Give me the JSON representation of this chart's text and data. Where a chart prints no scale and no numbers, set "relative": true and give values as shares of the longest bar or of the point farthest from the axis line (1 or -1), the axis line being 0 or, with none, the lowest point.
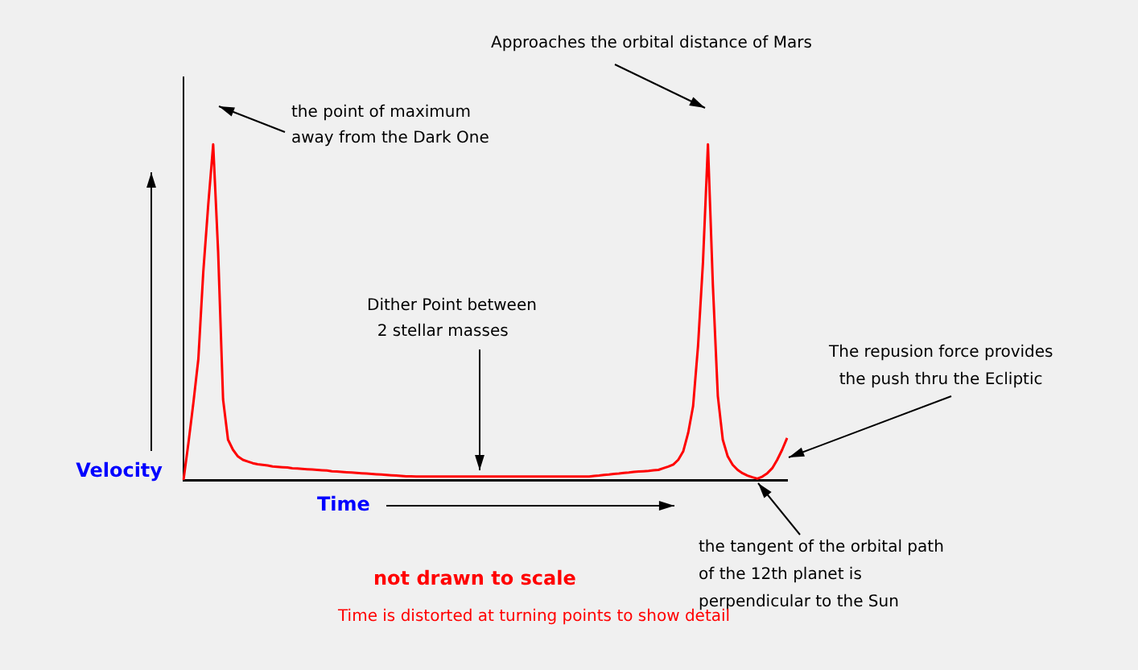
{
  "chart_data": {
    "type": "line",
    "relative": true,
    "xlabel": "Time",
    "ylabel": "Velocity",
    "grid": false,
    "legend": false,
    "marker": "none",
    "line_style": "solid",
    "categories": [
      null,
      null,
      null,
      null,
      null,
      null,
      null,
      null,
      null,
      null,
      null,
      null,
      null,
      null,
      null,
      null,
      null,
      null,
      null,
      null,
      null,
      null,
      null,
      null,
      null,
      null,
      null,
      null,
      null,
      null,
      null,
      null,
      null,
      null,
      null,
      null,
      null,
      null,
      null,
      null,
      null,
      null,
      null,
      null,
      null,
      null,
      null,
      null,
      null,
      null,
      null,
      null,
      null,
      null,
      null,
      null,
      null,
      null,
      null,
      null,
      null,
      null,
      null,
      null,
      null,
      null,
      null,
      null,
      null,
      null,
      null,
      null,
      null,
      null,
      null,
      null,
      null,
      null,
      null,
      null,
      null,
      null,
      null,
      null,
      null,
      null,
      null,
      null,
      null,
      null,
      null,
      null,
      null,
      null,
      null,
      null,
      null,
      null,
      null,
      null,
      null,
      null,
      null,
      null,
      null,
      null,
      null,
      null,
      null,
      null,
      null,
      null,
      null,
      null,
      null,
      null,
      null,
      null,
      null,
      null,
      null,
      null,
      null
    ],
    "series": [
      {
        "color": "#ff0000",
        "values": [
          0,
          0.11,
          0.23,
          0.36,
          0.62,
          0.82,
          1,
          0.68,
          0.24,
          0.12,
          0.09,
          0.07,
          0.06,
          0.055,
          0.05,
          0.047,
          0.045,
          0.043,
          0.04,
          0.039,
          0.038,
          0.037,
          0.035,
          0.034,
          0.033,
          0.032,
          0.031,
          0.03,
          0.029,
          0.028,
          0.026,
          0.025,
          0.024,
          0.023,
          0.022,
          0.021,
          0.02,
          0.019,
          0.018,
          0.017,
          0.016,
          0.015,
          0.014,
          0.013,
          0.012,
          0.011,
          0.011,
          0.01,
          0.01,
          0.01,
          0.01,
          0.01,
          0.01,
          0.01,
          0.01,
          0.01,
          0.01,
          0.01,
          0.01,
          0.01,
          0.01,
          0.01,
          0.01,
          0.01,
          0.01,
          0.01,
          0.01,
          0.01,
          0.01,
          0.01,
          0.01,
          0.01,
          0.01,
          0.01,
          0.01,
          0.01,
          0.01,
          0.01,
          0.01,
          0.01,
          0.01,
          0.01,
          0.01,
          0.012,
          0.013,
          0.015,
          0.016,
          0.018,
          0.019,
          0.021,
          0.022,
          0.024,
          0.025,
          0.026,
          0.027,
          0.029,
          0.03,
          0.035,
          0.04,
          0.046,
          0.06,
          0.085,
          0.14,
          0.22,
          0.4,
          0.65,
          1,
          0.58,
          0.25,
          0.12,
          0.07,
          0.045,
          0.03,
          0.02,
          0.013,
          0.008,
          0.004,
          0.01,
          0.02,
          0.035,
          0.06,
          0.09,
          0.125
        ]
      }
    ],
    "annotations": [
      "the point of maximum\naway from the Dark One",
      "Approaches the orbital distance of Mars",
      "Dither Point between\n  2 stellar masses",
      "The repusion force provides\n  the push thru the Ecliptic",
      "the tangent of the orbital path\nof the 12th planet is\nperpendicular to the Sun",
      "not drawn to scale",
      "Time is distorted at turning points to show detail"
    ]
  }
}
